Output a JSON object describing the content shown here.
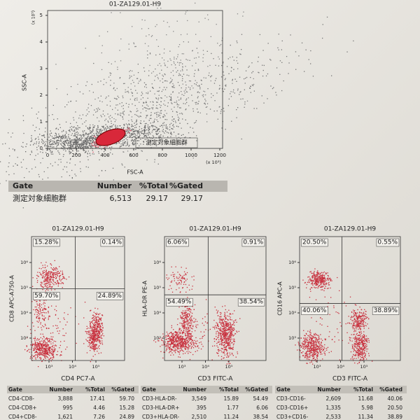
{
  "top": {
    "title": "01-ZA129.01-H9",
    "y_label": "SSC-A",
    "x_label": "FSC-A",
    "y_unit": "(x 10⁵)",
    "x_unit": "(x 10³)",
    "yticks": [
      "0",
      "1",
      "2",
      "3",
      "4",
      "5"
    ],
    "xticks": [
      "0",
      "200",
      "400",
      "600",
      "800",
      "1000",
      "1200"
    ],
    "gate_label": "測定対象細胞群"
  },
  "top_table": {
    "header": [
      "Gate",
      "Number",
      "%Total",
      "%Gated"
    ],
    "rows": [
      [
        "測定対象細胞群",
        "6,513",
        "29.17",
        "29.17"
      ]
    ]
  },
  "plots": [
    {
      "title": "01-ZA129.01-H9",
      "y_label": "CD8 APC-A750-A",
      "x_label": "CD4 PC7-A",
      "yticks": [
        "10³",
        "10⁴",
        "10⁵",
        "10⁶"
      ],
      "xticks": [
        "10³",
        "10⁴",
        "10⁵"
      ],
      "quadrants": [
        "15.28%",
        "0.14%",
        "59.70%",
        "24.89%"
      ]
    },
    {
      "title": "01-ZA129.01-H9",
      "y_label": "HLA-DR PE-A",
      "x_label": "CD3 FITC-A",
      "yticks": [
        "10³",
        "10⁴",
        "10⁵",
        "10⁶"
      ],
      "xticks": [
        "10³",
        "10⁴",
        "10⁵"
      ],
      "quadrants": [
        "6.06%",
        "0.91%",
        "54.49%",
        "38.54%"
      ]
    },
    {
      "title": "01-ZA129.01-H9",
      "y_label": "CD16 APC-A",
      "x_label": "CD3 FITC-A",
      "yticks": [
        "10³",
        "10⁴",
        "10⁵",
        "10⁶"
      ],
      "xticks": [
        "10³",
        "10⁴",
        "10⁵"
      ],
      "quadrants": [
        "20.50%",
        "0.55%",
        "40.06%",
        "38.89%"
      ]
    }
  ],
  "tables": [
    {
      "header": [
        "Gate",
        "Number",
        "%Total",
        "%Gated"
      ],
      "rows": [
        [
          "CD4-CD8-",
          "3,888",
          "17.41",
          "59.70"
        ],
        [
          "CD4-CD8+",
          "995",
          "4.46",
          "15.28"
        ],
        [
          "CD4+CD8-",
          "1,621",
          "7.26",
          "24.89"
        ]
      ]
    },
    {
      "header": [
        "Gate",
        "Number",
        "%Total",
        "%Gated"
      ],
      "rows": [
        [
          "CD3-HLA-DR-",
          "3,549",
          "15.89",
          "54.49"
        ],
        [
          "CD3-HLA-DR+",
          "395",
          "1.77",
          "6.06"
        ],
        [
          "CD3+HLA-DR-",
          "2,510",
          "11.24",
          "38.54"
        ]
      ]
    },
    {
      "header": [
        "Gate",
        "Number",
        "%Total",
        "%Gated"
      ],
      "rows": [
        [
          "CD3-CD16-",
          "2,609",
          "11.68",
          "40.06"
        ],
        [
          "CD3-CD16+",
          "1,335",
          "5.98",
          "20.50"
        ],
        [
          "CD3+CD16-",
          "2,533",
          "11.34",
          "38.89"
        ]
      ]
    }
  ]
}
